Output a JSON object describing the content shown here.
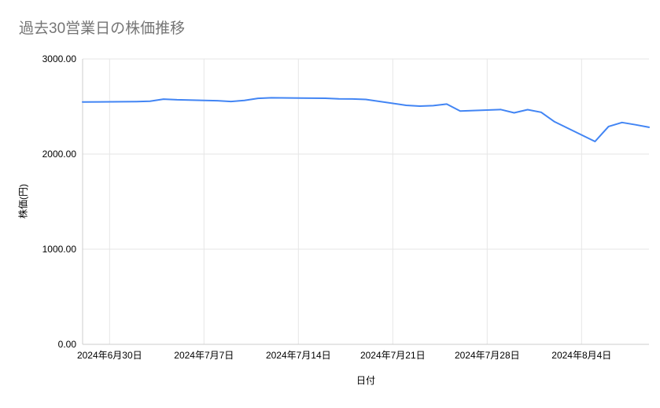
{
  "chart_data": {
    "type": "line",
    "title": "過去30営業日の株価推移",
    "xlabel": "日付",
    "ylabel": "株価(円)",
    "ylim": [
      0,
      3000
    ],
    "grid": true,
    "legend": "none",
    "dates": [
      "2024-06-28",
      "2024-07-01",
      "2024-07-02",
      "2024-07-03",
      "2024-07-04",
      "2024-07-05",
      "2024-07-08",
      "2024-07-09",
      "2024-07-10",
      "2024-07-11",
      "2024-07-12",
      "2024-07-16",
      "2024-07-17",
      "2024-07-18",
      "2024-07-19",
      "2024-07-22",
      "2024-07-23",
      "2024-07-24",
      "2024-07-25",
      "2024-07-26",
      "2024-07-29",
      "2024-07-30",
      "2024-07-31",
      "2024-08-01",
      "2024-08-02",
      "2024-08-05",
      "2024-08-06",
      "2024-08-07",
      "2024-08-08",
      "2024-08-09"
    ],
    "values": [
      2548,
      2550,
      2552,
      2556,
      2578,
      2571,
      2561,
      2553,
      2564,
      2586,
      2592,
      2587,
      2581,
      2579,
      2574,
      2512,
      2504,
      2509,
      2526,
      2452,
      2469,
      2434,
      2467,
      2440,
      2340,
      2132,
      2290,
      2332,
      2308,
      2282
    ],
    "x_ticks": [
      {
        "date": "2024-06-30",
        "label": "2024年6月30日"
      },
      {
        "date": "2024-07-07",
        "label": "2024年7月7日"
      },
      {
        "date": "2024-07-14",
        "label": "2024年7月14日"
      },
      {
        "date": "2024-07-21",
        "label": "2024年7月21日"
      },
      {
        "date": "2024-07-28",
        "label": "2024年7月28日"
      },
      {
        "date": "2024-08-04",
        "label": "2024年8月4日"
      }
    ],
    "y_ticks": [
      {
        "value": 0,
        "label": "0.00"
      },
      {
        "value": 1000,
        "label": "1000.00"
      },
      {
        "value": 2000,
        "label": "2000.00"
      },
      {
        "value": 3000,
        "label": "3000.00"
      }
    ],
    "colors": {
      "line": "#4285f4",
      "grid": "#e6e6e6",
      "axis": "#cccccc",
      "title_text": "#757575",
      "tick_text": "#000000"
    }
  }
}
